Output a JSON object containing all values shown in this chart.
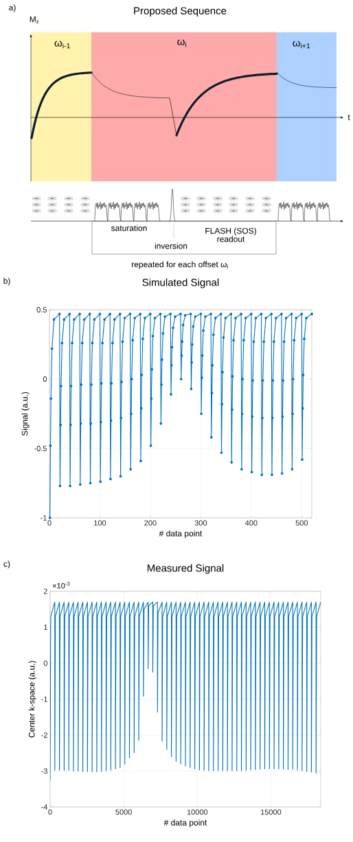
{
  "chart_data": [
    {
      "type": "other",
      "title": "Proposed Sequence",
      "annotations": [
        "a)",
        "M$_{z}$",
        "t",
        "ω$_{i-1}$",
        "ω$_{i}$",
        "ω$_{i+1}$",
        "saturation",
        "inversion",
        "FLASH (SOS) readout",
        "repeated for each offset ω$_{i}$"
      ]
    },
    {
      "type": "line",
      "title": "Simulated Signal",
      "xlabel": "# data point",
      "ylabel": "Signal (a.u.)",
      "annotations": [
        "b)"
      ],
      "color": "#0072bd",
      "marker": "circle",
      "line_style": "solid",
      "grid": true,
      "xlim": [
        0,
        520
      ],
      "ylim": [
        -1,
        0.5
      ],
      "xticks": [
        0,
        100,
        200,
        300,
        400,
        500
      ],
      "yticks": [
        -1,
        -0.5,
        0,
        0.5
      ],
      "x": [
        1,
        2,
        3,
        5,
        9,
        20,
        21,
        22,
        23,
        25,
        29,
        40,
        41,
        42,
        43,
        45,
        49,
        60,
        61,
        62,
        63,
        65,
        69,
        80,
        81,
        82,
        83,
        85,
        89,
        100,
        101,
        102,
        103,
        105,
        109,
        120,
        121,
        122,
        123,
        125,
        129,
        140,
        141,
        142,
        143,
        145,
        149,
        160,
        161,
        162,
        163,
        165,
        169,
        180,
        181,
        182,
        183,
        185,
        189,
        200,
        201,
        202,
        203,
        205,
        209,
        220,
        221,
        222,
        223,
        225,
        229,
        240,
        241,
        242,
        243,
        245,
        249,
        260,
        261,
        262,
        263,
        265,
        269,
        280,
        281,
        282,
        283,
        285,
        289,
        300,
        301,
        302,
        303,
        305,
        309,
        320,
        321,
        322,
        323,
        325,
        329,
        340,
        341,
        342,
        343,
        345,
        349,
        360,
        361,
        362,
        363,
        365,
        369,
        380,
        381,
        382,
        383,
        385,
        389,
        400,
        401,
        402,
        403,
        405,
        409,
        420,
        421,
        422,
        423,
        425,
        429,
        440,
        441,
        442,
        443,
        445,
        449,
        460,
        461,
        462,
        463,
        465,
        469,
        480,
        481,
        482,
        483,
        485,
        489,
        500,
        501,
        502,
        503,
        505,
        509,
        520
      ],
      "values": [
        -1.0,
        -0.48,
        -0.14,
        0.22,
        0.43,
        0.47,
        -0.77,
        -0.33,
        -0.05,
        0.26,
        0.43,
        0.47,
        -0.77,
        -0.33,
        -0.05,
        0.26,
        0.43,
        0.47,
        -0.76,
        -0.32,
        -0.04,
        0.26,
        0.43,
        0.47,
        -0.75,
        -0.32,
        -0.04,
        0.26,
        0.43,
        0.47,
        -0.74,
        -0.31,
        -0.03,
        0.26,
        0.43,
        0.47,
        -0.72,
        -0.3,
        -0.03,
        0.26,
        0.43,
        0.47,
        -0.7,
        -0.28,
        -0.02,
        0.27,
        0.44,
        0.47,
        -0.65,
        -0.25,
        0.0,
        0.28,
        0.44,
        0.47,
        -0.59,
        -0.21,
        0.03,
        0.29,
        0.44,
        0.47,
        -0.48,
        -0.14,
        0.07,
        0.31,
        0.44,
        0.47,
        -0.32,
        -0.04,
        0.14,
        0.33,
        0.45,
        0.47,
        -0.11,
        0.1,
        0.23,
        0.37,
        0.45,
        0.47,
        0.0,
        0.17,
        0.27,
        0.39,
        0.46,
        0.47,
        -0.07,
        0.12,
        0.25,
        0.38,
        0.45,
        0.47,
        -0.25,
        0.01,
        0.17,
        0.35,
        0.45,
        0.47,
        -0.42,
        -0.1,
        0.1,
        0.32,
        0.44,
        0.47,
        -0.53,
        -0.18,
        0.05,
        0.3,
        0.44,
        0.47,
        -0.6,
        -0.22,
        0.02,
        0.28,
        0.44,
        0.47,
        -0.65,
        -0.25,
        0.0,
        0.28,
        0.44,
        0.47,
        -0.67,
        -0.27,
        -0.01,
        0.27,
        0.44,
        0.47,
        -0.69,
        -0.28,
        -0.01,
        0.27,
        0.44,
        0.47,
        -0.69,
        -0.28,
        -0.01,
        0.27,
        0.44,
        0.47,
        -0.68,
        -0.27,
        -0.01,
        0.27,
        0.44,
        0.47,
        -0.65,
        -0.25,
        0.0,
        0.28,
        0.44,
        0.47,
        -0.58,
        -0.21,
        0.03,
        0.29,
        0.44,
        0.47
      ]
    },
    {
      "type": "line",
      "title": "Measured Signal",
      "xlabel": "# data point",
      "ylabel": "Center k-space (a.u.)",
      "annotations": [
        "c)",
        "×10$^{-3}$"
      ],
      "color": "#0072bd",
      "line_style": "solid",
      "grid": true,
      "xlim": [
        0,
        18386
      ],
      "ylim": [
        -4,
        2
      ],
      "xticks": [
        0,
        5000,
        10000,
        15000
      ],
      "yticks": [
        -4,
        -3,
        -2,
        -1,
        0,
        1,
        2
      ],
      "x": [
        0,
        40,
        316,
        317,
        357,
        633,
        634,
        674,
        950,
        951,
        991,
        1267,
        1268,
        1308,
        1584,
        1585,
        1625,
        1901,
        1902,
        1942,
        2218,
        2219,
        2259,
        2535,
        2536,
        2576,
        2852,
        2853,
        2893,
        3169,
        3170,
        3210,
        3486,
        3487,
        3527,
        3803,
        3804,
        3844,
        4120,
        4121,
        4161,
        4437,
        4438,
        4478,
        4754,
        4755,
        4795,
        5071,
        5072,
        5112,
        5388,
        5389,
        5429,
        5705,
        5706,
        5746,
        6022,
        6023,
        6063,
        6339,
        6340,
        6380,
        6656,
        6657,
        6697,
        6973,
        6974,
        7014,
        7290,
        7291,
        7331,
        7607,
        7608,
        7648,
        7924,
        7925,
        7965,
        8241,
        8242,
        8282,
        8558,
        8559,
        8599,
        8875,
        8876,
        8916,
        9192,
        9193,
        9233,
        9509,
        9510,
        9550,
        9826,
        9827,
        9867,
        10143,
        10144,
        10184,
        10460,
        10461,
        10501,
        10777,
        10778,
        10818,
        11094,
        11095,
        11135,
        11411,
        11412,
        11452,
        11728,
        11729,
        11769,
        12045,
        12046,
        12086,
        12362,
        12363,
        12403,
        12679,
        12680,
        12720,
        12996,
        12997,
        13037,
        13313,
        13314,
        13354,
        13630,
        13631,
        13671,
        13947,
        13948,
        13988,
        14264,
        14265,
        14305,
        14581,
        14582,
        14622,
        14898,
        14899,
        14939,
        15215,
        15216,
        15256,
        15532,
        15533,
        15573,
        15849,
        15850,
        15890,
        16166,
        16167,
        16207,
        16483,
        16484,
        16524,
        16800,
        16801,
        16841,
        17117,
        17118,
        17158,
        17434,
        17435,
        17475,
        17751,
        17752,
        17792,
        18068,
        18069,
        18109,
        18385
      ],
      "values": [
        -3.26,
        1.3,
        1.7,
        -2.98,
        1.3,
        1.7,
        -2.98,
        1.3,
        1.7,
        -2.98,
        1.3,
        1.7,
        -2.98,
        1.3,
        1.7,
        -3.0,
        1.3,
        1.7,
        -3.0,
        1.3,
        1.7,
        -3.01,
        1.3,
        1.7,
        -3.02,
        1.3,
        1.7,
        -3.02,
        1.3,
        1.7,
        -3.02,
        1.3,
        1.7,
        -3.01,
        1.3,
        1.7,
        -2.99,
        1.3,
        1.7,
        -2.97,
        1.3,
        1.7,
        -2.94,
        1.3,
        1.7,
        -2.9,
        1.3,
        1.7,
        -2.81,
        1.3,
        1.7,
        -2.63,
        1.3,
        1.7,
        -2.49,
        1.3,
        1.7,
        -2.15,
        1.3,
        1.7,
        -0.92,
        1.5,
        1.7,
        -0.15,
        1.6,
        1.7,
        -0.25,
        1.6,
        1.7,
        -1.36,
        1.4,
        1.7,
        -2.17,
        1.3,
        1.7,
        -2.4,
        1.3,
        1.7,
        -2.6,
        1.3,
        1.7,
        -2.73,
        1.3,
        1.7,
        -2.8,
        1.3,
        1.7,
        -2.86,
        1.3,
        1.7,
        -2.91,
        1.3,
        1.7,
        -2.94,
        1.3,
        1.7,
        -2.97,
        1.3,
        1.7,
        -2.98,
        1.3,
        1.7,
        -2.99,
        1.3,
        1.7,
        -2.99,
        1.3,
        1.7,
        -2.99,
        1.3,
        1.7,
        -2.99,
        1.3,
        1.7,
        -2.99,
        1.3,
        1.7,
        -2.99,
        1.3,
        1.7,
        -2.99,
        1.3,
        1.7,
        -2.99,
        1.3,
        1.7,
        -2.98,
        1.3,
        1.7,
        -2.97,
        1.3,
        1.7,
        -2.96,
        1.3,
        1.7,
        -2.95,
        1.3,
        1.7,
        -2.94,
        1.3,
        1.7,
        -2.94,
        1.3,
        1.7,
        -2.94,
        1.3,
        1.7,
        -2.94,
        1.3,
        1.7,
        -2.95,
        1.3,
        1.7,
        -2.96,
        1.3,
        1.7,
        -2.96,
        1.3,
        1.7,
        -2.97,
        1.3,
        1.7,
        -2.99,
        1.3,
        1.7,
        -3.01,
        1.3,
        1.7,
        -3.03,
        1.3,
        1.7,
        -3.06,
        1.3,
        1.7
      ]
    }
  ]
}
